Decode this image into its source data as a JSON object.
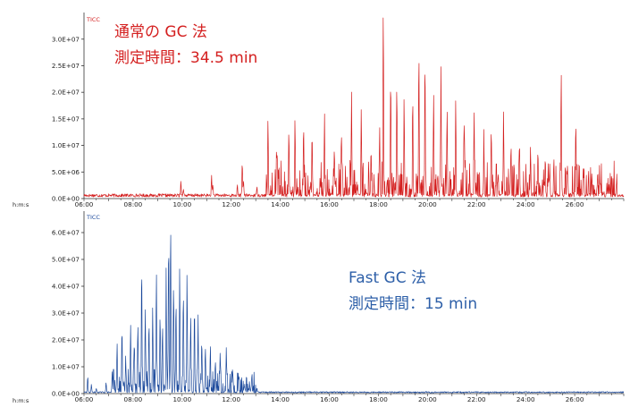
{
  "chart_data": [
    {
      "type": "line",
      "legend": "TICC",
      "annotation": {
        "line1": "通常の GC 法",
        "line2": "測定時間：34.5 min"
      },
      "series_color": "#d42020",
      "x_unit_label": "h:m:s",
      "xlim": [
        6.0,
        28.0
      ],
      "ylim": [
        0,
        34000000
      ],
      "x_ticks": [
        6,
        8,
        10,
        12,
        14,
        16,
        18,
        20,
        22,
        24,
        26
      ],
      "x_tick_labels": [
        "06:00",
        "08:00",
        "10:00",
        "12:00",
        "14:00",
        "16:00",
        "18:00",
        "20:00",
        "22:00",
        "24:00",
        "26:00"
      ],
      "y_ticks": [
        0,
        5000000,
        10000000,
        15000000,
        20000000,
        25000000,
        30000000
      ],
      "y_tick_labels": [
        "0.0E+00",
        "5.0E+06",
        "1.0E+07",
        "1.5E+07",
        "2.0E+07",
        "2.5E+07",
        "3.0E+07"
      ],
      "grid": false,
      "seed": 17,
      "baseline": 600000,
      "noise": {
        "start": 13.4,
        "end": 27.8,
        "density": 0.55,
        "amp": 6500000
      },
      "peaks": [
        [
          9.95,
          2800000
        ],
        [
          10.05,
          1500000
        ],
        [
          11.2,
          3600000
        ],
        [
          11.25,
          2200000
        ],
        [
          12.25,
          1800000
        ],
        [
          12.45,
          6500000
        ],
        [
          12.5,
          3000000
        ],
        [
          13.05,
          2000000
        ],
        [
          13.5,
          15000000
        ],
        [
          13.85,
          8000000
        ],
        [
          14.35,
          12500000
        ],
        [
          14.6,
          14500000
        ],
        [
          14.95,
          13000000
        ],
        [
          15.3,
          9500000
        ],
        [
          15.8,
          13000000
        ],
        [
          16.2,
          8500000
        ],
        [
          16.5,
          10000000
        ],
        [
          16.9,
          14500000
        ],
        [
          17.3,
          15000000
        ],
        [
          17.7,
          8500000
        ],
        [
          18.05,
          12500000
        ],
        [
          18.2,
          34000000
        ],
        [
          18.5,
          23000000
        ],
        [
          18.75,
          21500000
        ],
        [
          19.05,
          15000000
        ],
        [
          19.4,
          16000000
        ],
        [
          19.65,
          27500000
        ],
        [
          19.9,
          24000000
        ],
        [
          20.25,
          19500000
        ],
        [
          20.55,
          24500000
        ],
        [
          20.8,
          16000000
        ],
        [
          21.15,
          18000000
        ],
        [
          21.5,
          14500000
        ],
        [
          21.9,
          16000000
        ],
        [
          22.3,
          9000000
        ],
        [
          22.6,
          12500000
        ],
        [
          23.1,
          16000000
        ],
        [
          23.4,
          8000000
        ],
        [
          23.75,
          10500000
        ],
        [
          24.2,
          9500000
        ],
        [
          24.5,
          8000000
        ],
        [
          24.8,
          7000000
        ],
        [
          25.15,
          6500000
        ],
        [
          25.45,
          24000000
        ],
        [
          25.7,
          5500000
        ],
        [
          26.05,
          12500000
        ],
        [
          26.35,
          5000000
        ],
        [
          26.7,
          4500000
        ],
        [
          27.05,
          2500000
        ],
        [
          27.4,
          1500000
        ],
        [
          27.7,
          2500000
        ]
      ]
    },
    {
      "type": "line",
      "legend": "TICC",
      "annotation": {
        "line1": "Fast GC 法",
        "line2": "測定時間：15 min"
      },
      "series_color": "#1d4a9c",
      "x_unit_label": "h:m:s",
      "xlim": [
        6.0,
        28.0
      ],
      "ylim": [
        0,
        66000000
      ],
      "x_ticks": [
        6,
        8,
        10,
        12,
        14,
        16,
        18,
        20,
        22,
        24,
        26
      ],
      "x_tick_labels": [
        "06:00",
        "08:00",
        "10:00",
        "12:00",
        "14:00",
        "16:00",
        "18:00",
        "20:00",
        "22:00",
        "24:00",
        "26:00"
      ],
      "y_ticks": [
        0,
        10000000,
        20000000,
        30000000,
        40000000,
        50000000,
        60000000
      ],
      "y_tick_labels": [
        "0.0E+00",
        "1.0E+07",
        "2.0E+07",
        "3.0E+07",
        "4.0E+07",
        "5.0E+07",
        "6.0E+07"
      ],
      "grid": false,
      "seed": 29,
      "baseline": 500000,
      "noise": {
        "start": 7.1,
        "end": 13.0,
        "density": 0.75,
        "amp": 9000000
      },
      "peaks": [
        [
          6.15,
          6000000
        ],
        [
          6.3,
          3000000
        ],
        [
          6.5,
          1500000
        ],
        [
          6.9,
          3500000
        ],
        [
          7.15,
          8000000
        ],
        [
          7.35,
          18000000
        ],
        [
          7.55,
          20000000
        ],
        [
          7.7,
          13000000
        ],
        [
          7.9,
          25000000
        ],
        [
          8.05,
          16000000
        ],
        [
          8.2,
          24000000
        ],
        [
          8.35,
          47000000
        ],
        [
          8.5,
          30000000
        ],
        [
          8.65,
          23000000
        ],
        [
          8.8,
          32000000
        ],
        [
          8.95,
          45000000
        ],
        [
          9.1,
          28000000
        ],
        [
          9.2,
          26000000
        ],
        [
          9.35,
          42000000
        ],
        [
          9.45,
          58000000
        ],
        [
          9.53,
          65000000
        ],
        [
          9.65,
          40000000
        ],
        [
          9.75,
          34000000
        ],
        [
          9.9,
          44000000
        ],
        [
          10.05,
          36000000
        ],
        [
          10.2,
          38000000
        ],
        [
          10.35,
          25000000
        ],
        [
          10.5,
          30000000
        ],
        [
          10.65,
          27000000
        ],
        [
          10.8,
          20000000
        ],
        [
          10.95,
          16000000
        ],
        [
          11.15,
          18000000
        ],
        [
          11.35,
          10000000
        ],
        [
          11.55,
          14000000
        ],
        [
          11.8,
          15000000
        ],
        [
          12.05,
          8000000
        ],
        [
          12.3,
          5000000
        ],
        [
          12.55,
          3000000
        ],
        [
          12.75,
          2000000
        ],
        [
          13.05,
          1500000
        ]
      ]
    }
  ]
}
